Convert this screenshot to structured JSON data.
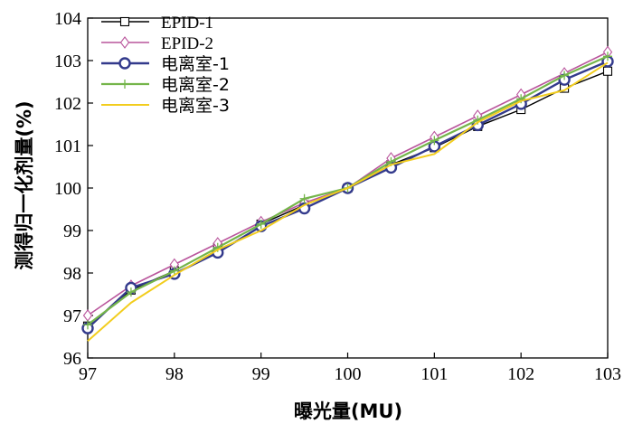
{
  "chart_data": {
    "type": "line",
    "xlabel": "曝光量(MU)",
    "ylabel": "测得归一化剂量(%)",
    "xlim": [
      97,
      103
    ],
    "ylim": [
      96,
      104
    ],
    "xticks": [
      "97",
      "98",
      "99",
      "100",
      "101",
      "102",
      "103"
    ],
    "yticks": [
      "96",
      "97",
      "98",
      "99",
      "100",
      "101",
      "102",
      "103",
      "104"
    ],
    "legend_position": "top-left",
    "grid": false,
    "x": [
      97,
      97.5,
      98,
      98.5,
      99,
      99.5,
      100,
      100.5,
      101,
      101.5,
      102,
      102.5,
      103
    ],
    "series": [
      {
        "name": "EPID-1",
        "color": "#000000",
        "marker": "square",
        "values": [
          96.75,
          97.6,
          98.05,
          98.6,
          99.15,
          99.6,
          100.0,
          100.55,
          100.95,
          101.45,
          101.85,
          102.35,
          102.75
        ]
      },
      {
        "name": "EPID-2",
        "color": "#b9559c",
        "marker": "diamond",
        "values": [
          97.0,
          97.7,
          98.2,
          98.7,
          99.2,
          99.65,
          100.0,
          100.7,
          101.2,
          101.7,
          102.2,
          102.7,
          103.2
        ]
      },
      {
        "name": "电离室-1",
        "color": "#333a8c",
        "marker": "circle",
        "values": [
          96.7,
          97.65,
          97.98,
          98.48,
          99.1,
          99.52,
          100.0,
          100.48,
          100.98,
          101.48,
          101.98,
          102.55,
          102.98
        ]
      },
      {
        "name": "电离室-2",
        "color": "#74b54a",
        "marker": "plus",
        "values": [
          96.78,
          97.55,
          98.05,
          98.6,
          99.15,
          99.75,
          100.0,
          100.62,
          101.12,
          101.6,
          102.1,
          102.65,
          103.1
        ]
      },
      {
        "name": "电离室-3",
        "color": "#f2cd1e",
        "marker": "none",
        "values": [
          96.4,
          97.3,
          97.95,
          98.55,
          99.0,
          99.6,
          100.0,
          100.55,
          100.8,
          101.55,
          102.05,
          102.3,
          102.95
        ]
      }
    ]
  }
}
